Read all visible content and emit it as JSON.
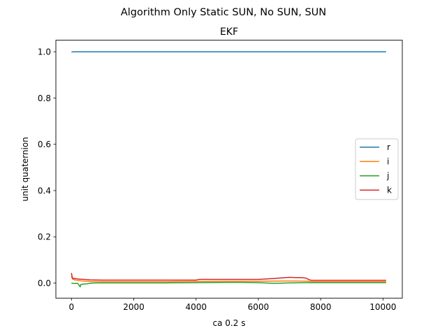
{
  "chart_data": {
    "type": "line",
    "suptitle": "Algorithm Only Static SUN, No SUN, SUN",
    "title": "EKF",
    "xlabel": "ca 0.2 s",
    "ylabel": "unit quaternion",
    "xlim": [
      -500,
      10620
    ],
    "ylim": [
      -0.065,
      1.05
    ],
    "xticks": [
      0,
      2000,
      4000,
      6000,
      8000,
      10000
    ],
    "xtick_labels": [
      "0",
      "2000",
      "4000",
      "6000",
      "8000",
      "10000"
    ],
    "yticks": [
      0.0,
      0.2,
      0.4,
      0.6,
      0.8,
      1.0
    ],
    "ytick_labels": [
      "0.0",
      "0.2",
      "0.4",
      "0.6",
      "0.8",
      "1.0"
    ],
    "grid": false,
    "legend_position": "center-right",
    "series": [
      {
        "name": "r",
        "color": "#1f77b4",
        "x": [
          0,
          50,
          200,
          1000,
          3000,
          5000,
          7000,
          9000,
          10100
        ],
        "y": [
          0.9985,
          0.9996,
          0.9997,
          0.9998,
          0.9998,
          0.9998,
          0.9997,
          0.9998,
          0.9998
        ]
      },
      {
        "name": "i",
        "color": "#ff7f0e",
        "x": [
          0,
          30,
          100,
          300,
          600,
          1000,
          2000,
          3000,
          4000,
          5000,
          6000,
          6800,
          7200,
          7600,
          7700,
          8500,
          9500,
          10100
        ],
        "y": [
          0.03,
          0.018,
          0.014,
          0.01,
          0.007,
          0.006,
          0.006,
          0.006,
          0.007,
          0.008,
          0.008,
          0.009,
          0.009,
          0.008,
          0.006,
          0.006,
          0.006,
          0.006
        ]
      },
      {
        "name": "j",
        "color": "#2ca02c",
        "x": [
          0,
          100,
          200,
          280,
          300,
          400,
          500,
          650,
          800,
          1000,
          2000,
          3000,
          4000,
          5000,
          5500,
          6000,
          6500,
          7000,
          7500,
          8000,
          9000,
          10100
        ],
        "y": [
          0.0,
          -0.002,
          -0.001,
          -0.016,
          -0.006,
          -0.004,
          -0.003,
          0.0,
          0.001,
          0.001,
          0.001,
          0.001,
          0.002,
          0.003,
          0.003,
          0.002,
          -0.001,
          0.001,
          0.002,
          0.002,
          0.002,
          0.002
        ]
      },
      {
        "name": "k",
        "color": "#d62728",
        "x": [
          0,
          20,
          40,
          60,
          100,
          200,
          400,
          600,
          1000,
          2000,
          3000,
          4000,
          4100,
          5000,
          6000,
          6500,
          6800,
          7000,
          7200,
          7400,
          7550,
          7600,
          7700,
          8500,
          9500,
          10100
        ],
        "y": [
          0.044,
          0.028,
          0.022,
          0.019,
          0.02,
          0.018,
          0.016,
          0.014,
          0.013,
          0.013,
          0.013,
          0.013,
          0.016,
          0.016,
          0.016,
          0.02,
          0.023,
          0.025,
          0.024,
          0.024,
          0.021,
          0.016,
          0.012,
          0.012,
          0.012,
          0.012
        ]
      }
    ]
  }
}
